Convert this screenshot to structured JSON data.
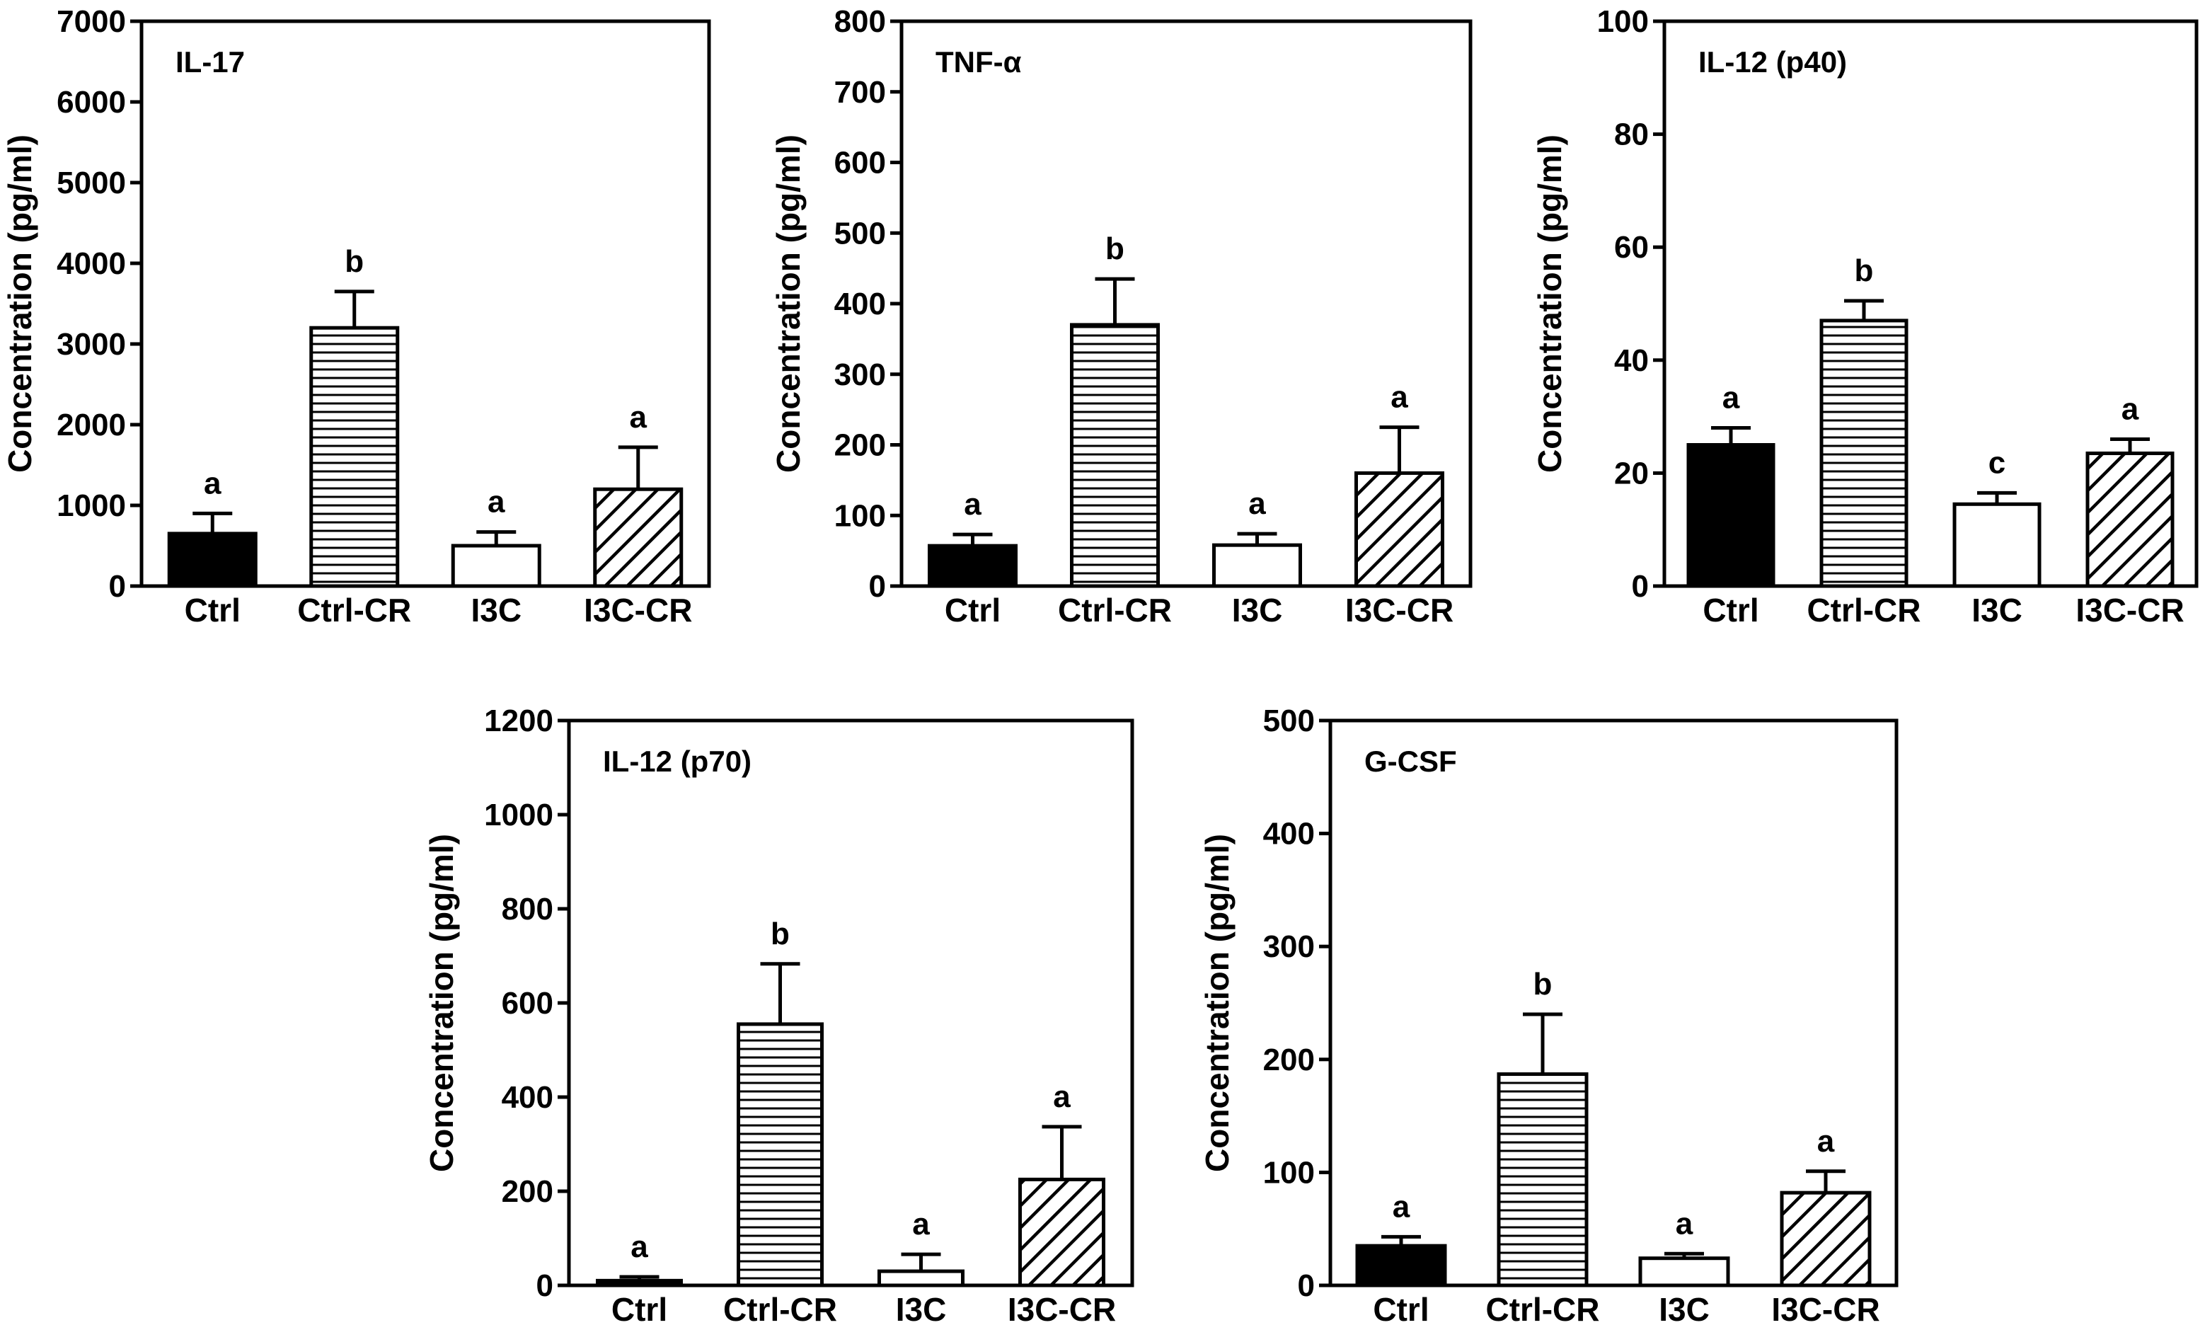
{
  "chart_data": [
    {
      "type": "bar",
      "title": "IL-17",
      "ylabel": "Concentration (pg/ml)",
      "xlabel": "",
      "ylim": [
        0,
        7000
      ],
      "yticks": [
        0,
        1000,
        2000,
        3000,
        4000,
        5000,
        6000,
        7000
      ],
      "categories": [
        "Ctrl",
        "Ctrl-CR",
        "I3C",
        "I3C-CR"
      ],
      "values": [
        650,
        3200,
        500,
        1200
      ],
      "errors": [
        250,
        450,
        170,
        520
      ],
      "letters": [
        "a",
        "b",
        "a",
        "a"
      ],
      "fills": [
        "solid",
        "hlines",
        "empty",
        "diag"
      ]
    },
    {
      "type": "bar",
      "title": "TNF-α",
      "ylabel": "Concentration (pg/ml)",
      "xlabel": "",
      "ylim": [
        0,
        800
      ],
      "yticks": [
        0,
        100,
        200,
        300,
        400,
        500,
        600,
        700,
        800
      ],
      "categories": [
        "Ctrl",
        "Ctrl-CR",
        "I3C",
        "I3C-CR"
      ],
      "values": [
        57,
        370,
        58,
        160
      ],
      "errors": [
        16,
        65,
        16,
        65
      ],
      "letters": [
        "a",
        "b",
        "a",
        "a"
      ],
      "fills": [
        "solid",
        "hlines",
        "empty",
        "diag"
      ]
    },
    {
      "type": "bar",
      "title": "IL-12 (p40)",
      "ylabel": "Concentration (pg/ml)",
      "xlabel": "",
      "ylim": [
        0,
        100
      ],
      "yticks": [
        0,
        20,
        40,
        60,
        80,
        100
      ],
      "categories": [
        "Ctrl",
        "Ctrl-CR",
        "I3C",
        "I3C-CR"
      ],
      "values": [
        25,
        47,
        14.5,
        23.5
      ],
      "errors": [
        3,
        3.5,
        2,
        2.5
      ],
      "letters": [
        "a",
        "b",
        "c",
        "a"
      ],
      "fills": [
        "solid",
        "hlines",
        "empty",
        "diag"
      ]
    },
    {
      "type": "bar",
      "title": "IL-12 (p70)",
      "ylabel": "Concentration (pg/ml)",
      "xlabel": "",
      "ylim": [
        0,
        1200
      ],
      "yticks": [
        0,
        200,
        400,
        600,
        800,
        1000,
        1200
      ],
      "categories": [
        "Ctrl",
        "Ctrl-CR",
        "I3C",
        "I3C-CR"
      ],
      "values": [
        10,
        555,
        30,
        225
      ],
      "errors": [
        8,
        128,
        36,
        112
      ],
      "letters": [
        "a",
        "b",
        "a",
        "a"
      ],
      "fills": [
        "solid",
        "hlines",
        "empty",
        "diag"
      ]
    },
    {
      "type": "bar",
      "title": "G-CSF",
      "ylabel": "Concentration (pg/ml)",
      "xlabel": "",
      "ylim": [
        0,
        500
      ],
      "yticks": [
        0,
        100,
        200,
        300,
        400,
        500
      ],
      "categories": [
        "Ctrl",
        "Ctrl-CR",
        "I3C",
        "I3C-CR"
      ],
      "values": [
        35,
        187,
        24,
        82
      ],
      "errors": [
        8,
        53,
        4,
        19
      ],
      "letters": [
        "a",
        "b",
        "a",
        "a"
      ],
      "fills": [
        "solid",
        "hlines",
        "empty",
        "diag"
      ]
    }
  ]
}
